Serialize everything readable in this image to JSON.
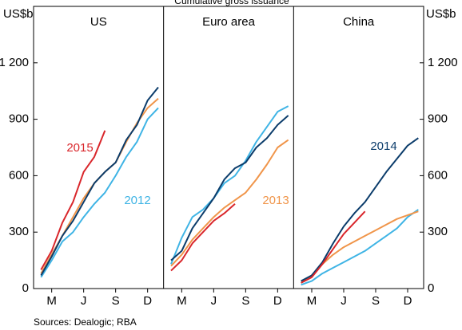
{
  "chart_data": {
    "type": "line",
    "title": "Cumulative gross issuance",
    "y_label": "US$b",
    "source": "Sources:  Dealogic; RBA",
    "x": [
      2,
      3,
      4,
      5,
      6,
      7,
      8,
      9,
      10,
      11,
      12,
      13
    ],
    "xlim": [
      1.3,
      13.5
    ],
    "xticks": [
      {
        "value": 3,
        "label": "M"
      },
      {
        "value": 6,
        "label": "J"
      },
      {
        "value": 9,
        "label": "S"
      },
      {
        "value": 12,
        "label": "D"
      }
    ],
    "ylim": [
      0,
      1500
    ],
    "yticks": [
      0,
      300,
      600,
      900,
      {
        "value": 1200,
        "label": "1 200"
      }
    ],
    "panels": [
      {
        "title": "US",
        "series": [
          {
            "name": "2012",
            "color": "#3fb4e5",
            "values": [
              60,
              150,
              250,
              300,
              380,
              450,
              510,
              600,
              700,
              780,
              900,
              960
            ]
          },
          {
            "color": "#f0954a",
            "values": [
              80,
              180,
              280,
              380,
              480,
              560,
              620,
              670,
              780,
              880,
              960,
              1010
            ]
          },
          {
            "color": "#0b3c6b",
            "values": [
              70,
              170,
              280,
              360,
              460,
              560,
              620,
              670,
              790,
              870,
              1000,
              1070
            ]
          },
          {
            "name": "2015",
            "color": "#d9262b",
            "values": [
              100,
              200,
              350,
              460,
              620,
              700,
              840,
              null,
              null,
              null,
              null,
              null
            ]
          }
        ]
      },
      {
        "title": "Euro area",
        "series": [
          {
            "color": "#3fb4e5",
            "values": [
              130,
              270,
              380,
              420,
              480,
              560,
              600,
              680,
              780,
              860,
              940,
              970
            ]
          },
          {
            "name": "2013",
            "color": "#f0954a",
            "values": [
              120,
              180,
              260,
              320,
              380,
              430,
              470,
              510,
              580,
              660,
              750,
              790
            ]
          },
          {
            "color": "#0b3c6b",
            "values": [
              150,
              200,
              320,
              400,
              480,
              580,
              640,
              670,
              750,
              800,
              870,
              920
            ]
          },
          {
            "color": "#d9262b",
            "values": [
              95,
              150,
              240,
              300,
              360,
              400,
              450,
              null,
              null,
              null,
              null,
              null
            ]
          }
        ]
      },
      {
        "title": "China",
        "series": [
          {
            "color": "#3fb4e5",
            "values": [
              20,
              40,
              80,
              110,
              140,
              170,
              200,
              240,
              280,
              320,
              380,
              420
            ]
          },
          {
            "color": "#f0954a",
            "values": [
              30,
              70,
              130,
              180,
              220,
              250,
              280,
              310,
              340,
              370,
              390,
              410
            ]
          },
          {
            "name": "2014",
            "color": "#0b3c6b",
            "values": [
              40,
              70,
              140,
              240,
              330,
              400,
              460,
              540,
              620,
              690,
              760,
              800
            ]
          },
          {
            "color": "#d9262b",
            "values": [
              30,
              60,
              130,
              210,
              290,
              350,
              410,
              null,
              null,
              null,
              null,
              null
            ]
          }
        ]
      }
    ]
  }
}
